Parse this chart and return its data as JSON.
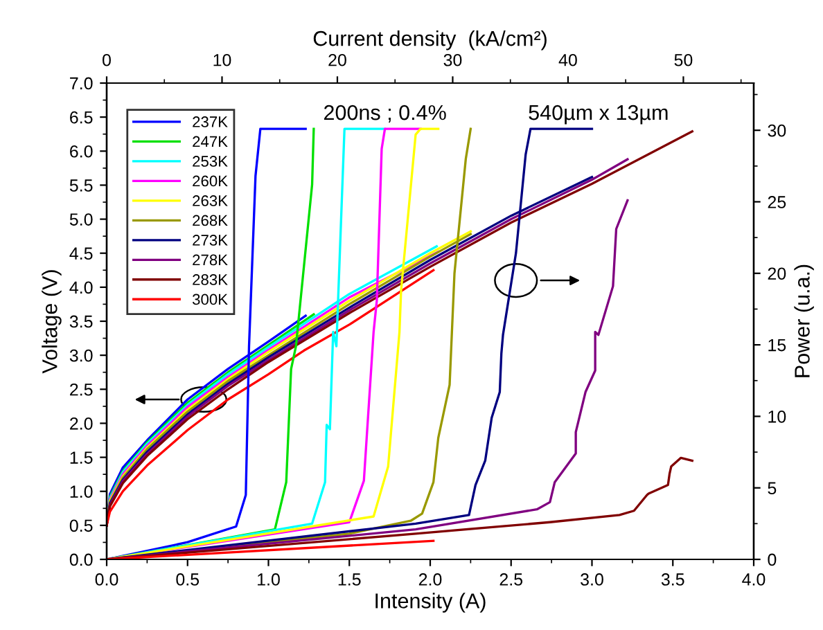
{
  "chart_data": {
    "type": "line",
    "xlabel": "Intensity (A)",
    "ylabel": "Voltage (V)",
    "y2label": "Power (u.a.)",
    "x2label": "Current density  (kA/cm²)",
    "xlim": [
      0,
      4.0
    ],
    "xticks": [
      {
        "value": 0,
        "label": "0.0"
      },
      {
        "value": 0.5,
        "label": "0.5"
      },
      {
        "value": 1,
        "label": "1.0"
      },
      {
        "value": 1.5,
        "label": "1.5"
      },
      {
        "value": 2,
        "label": "2.0"
      },
      {
        "value": 2.5,
        "label": "2.5"
      },
      {
        "value": 3,
        "label": "3.0"
      },
      {
        "value": 3.5,
        "label": "3.5"
      },
      {
        "value": 4,
        "label": "4.0"
      }
    ],
    "ylim": [
      0,
      7.0
    ],
    "yticks": [
      {
        "value": 0,
        "label": "0.0"
      },
      {
        "value": 0.5,
        "label": "0.5"
      },
      {
        "value": 1,
        "label": "1.0"
      },
      {
        "value": 1.5,
        "label": "1.5"
      },
      {
        "value": 2,
        "label": "2.0"
      },
      {
        "value": 2.5,
        "label": "2.5"
      },
      {
        "value": 3,
        "label": "3.0"
      },
      {
        "value": 3.5,
        "label": "3.5"
      },
      {
        "value": 4,
        "label": "4.0"
      },
      {
        "value": 4.5,
        "label": "4.5"
      },
      {
        "value": 5,
        "label": "5.0"
      },
      {
        "value": 5.5,
        "label": "5.5"
      },
      {
        "value": 6,
        "label": "6.0"
      },
      {
        "value": 6.5,
        "label": "6.5"
      },
      {
        "value": 7,
        "label": "7.0"
      }
    ],
    "y2lim": [
      0,
      33.3
    ],
    "y2ticks": [
      0,
      5,
      10,
      15,
      20,
      25,
      30
    ],
    "x2lim": [
      0,
      56.1
    ],
    "x2ticks": [
      0,
      10,
      20,
      30,
      40,
      50
    ],
    "grid": false,
    "legend": "top left",
    "marker": "none",
    "line_style": "solid",
    "annotations": [
      "200ns ; 0.4%",
      "540µm x 13µm"
    ],
    "series": [
      {
        "name": "237K",
        "color": "#0000ff",
        "x": [
          0,
          0.02,
          0.1,
          0.25,
          0.5,
          0.75,
          1.0,
          1.23
        ],
        "values": [
          0.5,
          0.96,
          1.35,
          1.75,
          2.35,
          2.8,
          3.2,
          3.58
        ]
      },
      {
        "name": "247K",
        "color": "#00e000",
        "x": [
          0,
          0.02,
          0.1,
          0.25,
          0.5,
          0.75,
          1.0,
          1.28
        ],
        "values": [
          0.5,
          0.92,
          1.3,
          1.72,
          2.3,
          2.75,
          3.15,
          3.6
        ]
      },
      {
        "name": "253K",
        "color": "#00ffff",
        "x": [
          0,
          0.02,
          0.1,
          0.25,
          0.5,
          0.75,
          1.0,
          1.5,
          2.04
        ],
        "values": [
          0.5,
          0.9,
          1.28,
          1.7,
          2.27,
          2.72,
          3.12,
          3.9,
          4.6
        ]
      },
      {
        "name": "260K",
        "color": "#ff00ff",
        "x": [
          0,
          0.02,
          0.1,
          0.25,
          0.5,
          0.75,
          1.0,
          1.5,
          2.05
        ],
        "values": [
          0.5,
          0.88,
          1.25,
          1.67,
          2.24,
          2.68,
          3.08,
          3.85,
          4.52
        ]
      },
      {
        "name": "263K",
        "color": "#ffff00",
        "x": [
          0,
          0.02,
          0.1,
          0.25,
          0.5,
          0.75,
          1.0,
          1.5,
          2.0,
          2.25
        ],
        "values": [
          0.5,
          0.86,
          1.22,
          1.64,
          2.2,
          2.65,
          3.05,
          3.8,
          4.5,
          4.82
        ]
      },
      {
        "name": "268K",
        "color": "#999900",
        "x": [
          0,
          0.02,
          0.1,
          0.25,
          0.5,
          0.75,
          1.0,
          1.5,
          2.0,
          2.25
        ],
        "values": [
          0.5,
          0.84,
          1.2,
          1.62,
          2.17,
          2.62,
          3.0,
          3.75,
          4.45,
          4.78
        ]
      },
      {
        "name": "273K",
        "color": "#000080",
        "x": [
          0,
          0.02,
          0.1,
          0.25,
          0.5,
          0.75,
          1.0,
          1.5,
          2.0,
          2.5,
          3.0
        ],
        "values": [
          0.5,
          0.82,
          1.17,
          1.58,
          2.13,
          2.58,
          2.97,
          3.7,
          4.4,
          5.05,
          5.62
        ]
      },
      {
        "name": "278K",
        "color": "#800080",
        "x": [
          0,
          0.02,
          0.1,
          0.25,
          0.5,
          0.75,
          1.0,
          1.5,
          2.0,
          2.5,
          3.0,
          3.22
        ],
        "values": [
          0.5,
          0.8,
          1.15,
          1.55,
          2.1,
          2.55,
          2.93,
          3.66,
          4.35,
          5.0,
          5.58,
          5.88
        ]
      },
      {
        "name": "283K",
        "color": "#800000",
        "x": [
          0,
          0.02,
          0.1,
          0.25,
          0.5,
          0.75,
          1.0,
          1.5,
          2.0,
          2.5,
          3.0,
          3.62
        ],
        "values": [
          0.5,
          0.78,
          1.12,
          1.52,
          2.06,
          2.5,
          2.9,
          3.62,
          4.3,
          4.95,
          5.52,
          6.29
        ]
      },
      {
        "name": "300K",
        "color": "#ff0000",
        "x": [
          0,
          0.02,
          0.1,
          0.25,
          0.5,
          0.75,
          1.0,
          1.22,
          1.5,
          2.02
        ],
        "values": [
          0.5,
          0.7,
          1.0,
          1.38,
          1.9,
          2.35,
          2.72,
          3.07,
          3.45,
          4.25
        ]
      },
      {
        "axis": "y2",
        "color": "#0000ff",
        "x": [
          0,
          0.5,
          0.8,
          0.86,
          0.88,
          0.92,
          0.95,
          1.23
        ],
        "values": [
          0,
          1.2,
          2.3,
          4.5,
          14.9,
          26.8,
          30.1,
          30.1
        ]
      },
      {
        "axis": "y2",
        "color": "#00e000",
        "x": [
          0,
          0.5,
          1.04,
          1.11,
          1.14,
          1.17,
          1.27,
          1.28
        ],
        "values": [
          0,
          1.0,
          2.1,
          5.4,
          13.3,
          14.9,
          26.2,
          30.1
        ]
      },
      {
        "axis": "y2",
        "color": "#00ffff",
        "x": [
          0,
          1.27,
          1.35,
          1.36,
          1.38,
          1.4,
          1.42,
          1.47,
          1.72
        ],
        "values": [
          0,
          2.5,
          5.4,
          9.4,
          9.1,
          15.9,
          14.9,
          30.1,
          30.1
        ]
      },
      {
        "axis": "y2",
        "color": "#ff00ff",
        "x": [
          0,
          1.5,
          1.59,
          1.65,
          1.67,
          1.7,
          1.72,
          1.94
        ],
        "values": [
          0,
          2.6,
          5.5,
          15.9,
          18.1,
          28.7,
          30.1,
          30.1
        ]
      },
      {
        "axis": "y2",
        "color": "#ffff00",
        "x": [
          0,
          1.65,
          1.74,
          1.81,
          1.82,
          1.91,
          1.94,
          2.05
        ],
        "values": [
          0,
          3.0,
          6.5,
          15.9,
          18.8,
          29.7,
          30.1,
          30.1
        ]
      },
      {
        "axis": "y2",
        "color": "#999900",
        "x": [
          0,
          1.5,
          1.88,
          1.95,
          2.02,
          2.05,
          2.12,
          2.15,
          2.22,
          2.25
        ],
        "values": [
          0,
          1.8,
          2.7,
          3.2,
          5.4,
          8.5,
          12.2,
          20,
          28,
          30.1
        ]
      },
      {
        "axis": "y2",
        "color": "#000080",
        "x": [
          0,
          1.91,
          2.24,
          2.28,
          2.34,
          2.38,
          2.43,
          2.44,
          2.45,
          2.53,
          2.59,
          2.62,
          3.0
        ],
        "values": [
          0,
          2.5,
          3.1,
          5.2,
          6.9,
          9.9,
          11.7,
          14.4,
          15.7,
          21.4,
          28.3,
          30.1,
          30.1
        ]
      },
      {
        "axis": "y2",
        "color": "#800080",
        "x": [
          0,
          1.91,
          2.66,
          2.74,
          2.77,
          2.9,
          2.9,
          2.96,
          3.02,
          3.02,
          3.04,
          3.13,
          3.15,
          3.22
        ],
        "values": [
          0,
          2.1,
          3.5,
          4.0,
          5.4,
          7.4,
          8.9,
          11.7,
          13.2,
          15.9,
          15.7,
          19.1,
          23.1,
          25.1
        ]
      },
      {
        "axis": "y2",
        "color": "#800000",
        "x": [
          0,
          1.91,
          2.74,
          3.17,
          3.26,
          3.34,
          3.35,
          3.47,
          3.48,
          3.49,
          3.55,
          3.62
        ],
        "values": [
          0,
          1.8,
          2.6,
          3.1,
          3.4,
          4.5,
          4.6,
          5.2,
          6.0,
          6.5,
          7.1,
          6.9
        ]
      },
      {
        "axis": "y2",
        "color": "#ff0000",
        "x": [
          0,
          2.02
        ],
        "values": [
          0,
          1.3
        ]
      }
    ]
  }
}
